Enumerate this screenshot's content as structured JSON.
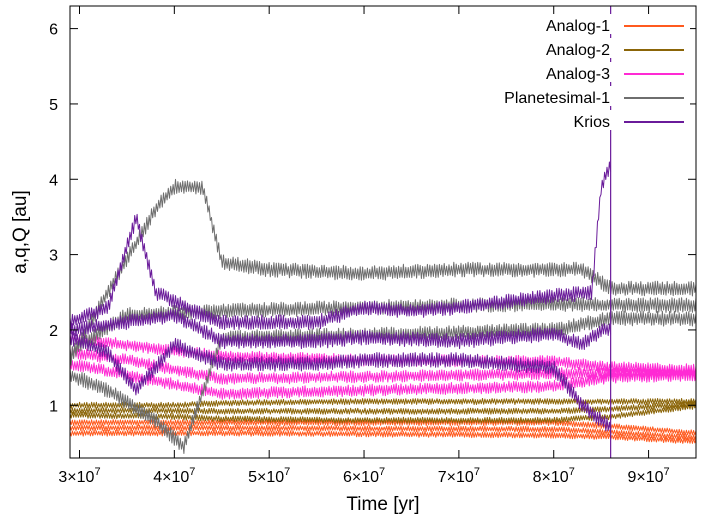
{
  "chart_data": {
    "type": "line",
    "xlabel": "Time [yr]",
    "ylabel": "a,q,Q [au]",
    "xlim": [
      29000000,
      95000000
    ],
    "ylim": [
      0.3,
      6.3
    ],
    "x_ticks": [
      30000000,
      40000000,
      50000000,
      60000000,
      70000000,
      80000000,
      90000000
    ],
    "x_tick_labels": [
      {
        "mantissa": "3",
        "exp": "7"
      },
      {
        "mantissa": "4",
        "exp": "7"
      },
      {
        "mantissa": "5",
        "exp": "7"
      },
      {
        "mantissa": "6",
        "exp": "7"
      },
      {
        "mantissa": "7",
        "exp": "7"
      },
      {
        "mantissa": "8",
        "exp": "7"
      },
      {
        "mantissa": "9",
        "exp": "7"
      }
    ],
    "x_tick_base": "10",
    "x_tick_times": "×",
    "y_ticks": [
      1,
      2,
      3,
      4,
      5,
      6
    ],
    "y_tick_labels": [
      "1",
      "2",
      "3",
      "4",
      "5",
      "6"
    ],
    "grid": false,
    "legend_position": "top-right",
    "event_x": 86000000,
    "series": [
      {
        "name": "Analog-1",
        "color": "#ff5a1f",
        "amp": 0.04,
        "curves": [
          {
            "x": [
              29000000,
              40000000,
              45000000,
              60000000,
              80000000,
              86000000,
              95000000
            ],
            "y": [
              0.77,
              0.77,
              0.77,
              0.77,
              0.77,
              0.72,
              0.63
            ]
          },
          {
            "x": [
              29000000,
              40000000,
              45000000,
              60000000,
              80000000,
              86000000,
              95000000
            ],
            "y": [
              0.7,
              0.7,
              0.7,
              0.69,
              0.68,
              0.64,
              0.57
            ]
          },
          {
            "x": [
              29000000,
              40000000,
              45000000,
              60000000,
              80000000,
              86000000,
              95000000
            ],
            "y": [
              0.63,
              0.63,
              0.63,
              0.62,
              0.6,
              0.58,
              0.52
            ]
          }
        ]
      },
      {
        "name": "Analog-2",
        "color": "#8b6508",
        "amp": 0.04,
        "curves": [
          {
            "x": [
              29000000,
              40000000,
              45000000,
              60000000,
              80000000,
              86000000,
              95000000
            ],
            "y": [
              1.0,
              1.0,
              1.03,
              1.05,
              1.05,
              1.05,
              1.05
            ]
          },
          {
            "x": [
              29000000,
              40000000,
              45000000,
              60000000,
              80000000,
              86000000,
              95000000
            ],
            "y": [
              0.93,
              0.93,
              0.92,
              0.92,
              0.92,
              0.95,
              1.02
            ]
          },
          {
            "x": [
              29000000,
              40000000,
              45000000,
              60000000,
              80000000,
              86000000,
              95000000
            ],
            "y": [
              0.87,
              0.85,
              0.82,
              0.8,
              0.8,
              0.85,
              0.99
            ]
          }
        ]
      },
      {
        "name": "Analog-3",
        "color": "#ff2ad4",
        "amp": 0.08,
        "curves": [
          {
            "x": [
              29000000,
              35000000,
              45000000,
              60000000,
              80000000,
              86000000,
              95000000
            ],
            "y": [
              1.9,
              1.8,
              1.65,
              1.6,
              1.58,
              1.5,
              1.47
            ]
          },
          {
            "x": [
              29000000,
              35000000,
              45000000,
              60000000,
              80000000,
              86000000,
              95000000
            ],
            "y": [
              1.7,
              1.6,
              1.35,
              1.38,
              1.42,
              1.43,
              1.43
            ]
          },
          {
            "x": [
              29000000,
              35000000,
              45000000,
              60000000,
              80000000,
              86000000,
              95000000
            ],
            "y": [
              1.55,
              1.4,
              1.15,
              1.2,
              1.25,
              1.37,
              1.4
            ]
          }
        ]
      },
      {
        "name": "Planetesimal-1",
        "color": "#6e6e6e",
        "amp": 0.1,
        "curves": [
          {
            "x": [
              29000000,
              33000000,
              38000000,
              40000000,
              43000000,
              45000000,
              50000000,
              60000000,
              70000000,
              83000000,
              86000000,
              95000000
            ],
            "y": [
              1.6,
              2.5,
              3.6,
              3.9,
              3.9,
              2.9,
              2.8,
              2.75,
              2.8,
              2.8,
              2.55,
              2.55
            ]
          },
          {
            "x": [
              29000000,
              35000000,
              45000000,
              60000000,
              80000000,
              86000000,
              95000000
            ],
            "y": [
              1.7,
              2.2,
              2.25,
              2.3,
              2.35,
              2.33,
              2.33
            ]
          },
          {
            "x": [
              29000000,
              33000000,
              38000000,
              41000000,
              45000000,
              60000000,
              80000000,
              86000000,
              95000000
            ],
            "y": [
              1.4,
              1.2,
              0.8,
              0.45,
              1.9,
              1.93,
              2.0,
              2.15,
              2.15
            ]
          }
        ]
      },
      {
        "name": "Krios",
        "color": "#6a1b9a",
        "amp": 0.1,
        "curves": [
          {
            "x": [
              29000000,
              33000000,
              36000000,
              38000000,
              43000000,
              45000000,
              55000000,
              60000000,
              65000000,
              70000000,
              80000000,
              84000000,
              85000000,
              86000000
            ],
            "y": [
              2.1,
              2.3,
              3.5,
              2.5,
              2.2,
              2.1,
              2.1,
              2.3,
              2.25,
              2.3,
              2.45,
              2.5,
              3.9,
              4.2
            ]
          },
          {
            "x": [
              29000000,
              35000000,
              40000000,
              45000000,
              55000000,
              60000000,
              70000000,
              80000000,
              83000000,
              85000000,
              86000000
            ],
            "y": [
              2.0,
              2.1,
              2.2,
              1.85,
              1.85,
              1.9,
              1.85,
              1.95,
              1.8,
              2.0,
              2.0
            ]
          },
          {
            "x": [
              29000000,
              33000000,
              36000000,
              40000000,
              45000000,
              55000000,
              60000000,
              70000000,
              80000000,
              83000000,
              86000000
            ],
            "y": [
              1.9,
              1.7,
              1.2,
              1.8,
              1.55,
              1.55,
              1.6,
              1.6,
              1.5,
              1.0,
              0.7
            ]
          }
        ]
      }
    ]
  }
}
